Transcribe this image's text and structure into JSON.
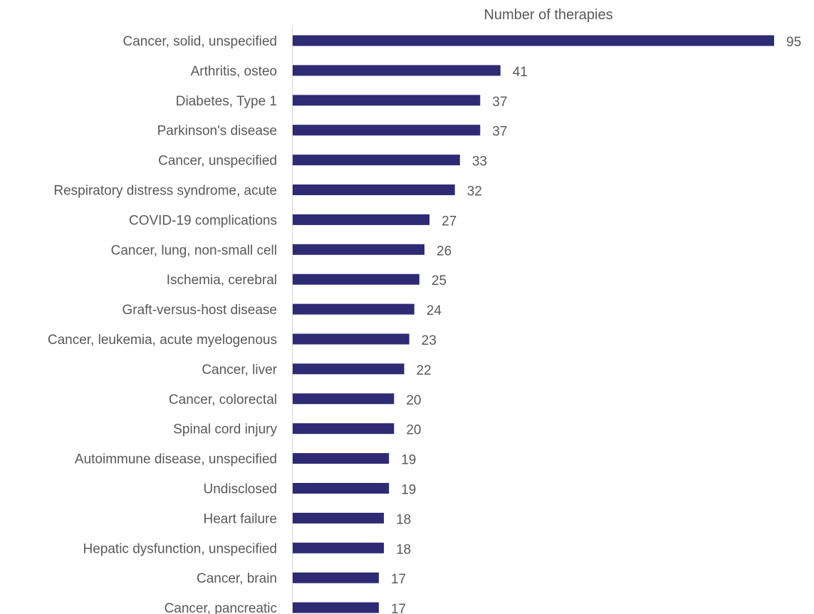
{
  "chart_data": {
    "type": "bar",
    "orientation": "horizontal",
    "title": "",
    "xlabel": "Number of therapies",
    "ylabel": "",
    "xlim": [
      0,
      95
    ],
    "grid": false,
    "legend": "none",
    "bar_color": "#2e2a73",
    "categories": [
      "Cancer, solid, unspecified",
      "Arthritis, osteo",
      "Diabetes, Type 1",
      "Parkinson's disease",
      "Cancer, unspecified",
      "Respiratory distress syndrome, acute",
      "COVID-19 complications",
      "Cancer, lung, non-small cell",
      "Ischemia, cerebral",
      "Graft-versus-host disease",
      "Cancer, leukemia, acute myelogenous",
      "Cancer, liver",
      "Cancer, colorectal",
      "Spinal cord injury",
      "Autoimmune disease, unspecified",
      "Undisclosed",
      "Heart failure",
      "Hepatic dysfunction, unspecified",
      "Cancer, brain",
      "Cancer, pancreatic"
    ],
    "values": [
      95,
      41,
      37,
      37,
      33,
      32,
      27,
      26,
      25,
      24,
      23,
      22,
      20,
      20,
      19,
      19,
      18,
      18,
      17,
      17
    ]
  }
}
